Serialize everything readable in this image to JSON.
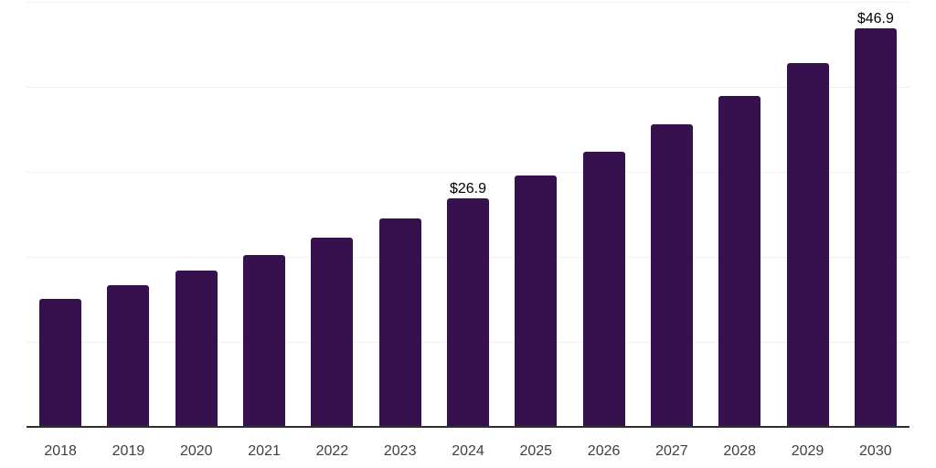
{
  "chart_data": {
    "type": "bar",
    "title": "",
    "categories": [
      "2018",
      "2019",
      "2020",
      "2021",
      "2022",
      "2023",
      "2024",
      "2025",
      "2026",
      "2027",
      "2028",
      "2029",
      "2030"
    ],
    "values": [
      15.1,
      16.7,
      18.4,
      20.2,
      22.3,
      24.5,
      26.9,
      29.6,
      32.4,
      35.6,
      38.9,
      42.8,
      46.9
    ],
    "point_labels": [
      "",
      "",
      "",
      "",
      "",
      "",
      "$26.9",
      "",
      "",
      "",
      "",
      "",
      "$46.9"
    ],
    "currency_prefix": "$",
    "xlabel": "",
    "ylabel": "",
    "ylim": [
      0,
      50
    ],
    "yticks": [
      10,
      20,
      30,
      40,
      50
    ],
    "y_tick_labels_visible": false,
    "grid": "horizontal",
    "legend": "none",
    "colors": {
      "bar": "#37114D",
      "gridline": "#F1F1F1",
      "axis_line": "#2F2F2F",
      "point_label": "#000000",
      "tick_label": "#3F3F3F",
      "background": "#FFFFFF"
    }
  }
}
